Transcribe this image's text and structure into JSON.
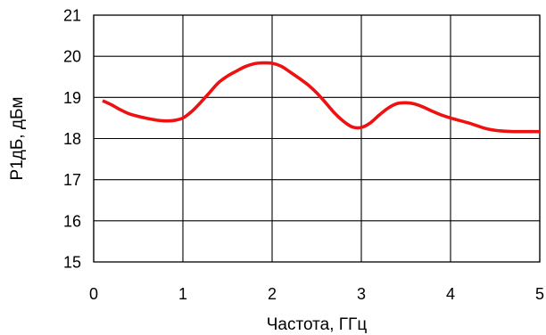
{
  "chart_data": {
    "type": "line",
    "title": "",
    "xlabel": "Частота, ГГц",
    "ylabel": "P1дБ, дБм",
    "xlim": [
      0,
      5
    ],
    "ylim": [
      15,
      21
    ],
    "x_ticks": [
      "0",
      "1",
      "2",
      "3",
      "4",
      "5"
    ],
    "y_ticks": [
      "15",
      "16",
      "17",
      "18",
      "19",
      "20",
      "21"
    ],
    "grid": true,
    "legend": "none",
    "series": [
      {
        "color": "#ee1111",
        "x": [
          0.1,
          0.2,
          0.3,
          0.4,
          0.5,
          0.6,
          0.7,
          0.8,
          0.9,
          1.0,
          1.1,
          1.2,
          1.3,
          1.4,
          1.5,
          1.6,
          1.7,
          1.8,
          1.9,
          2.0,
          2.1,
          2.2,
          2.3,
          2.4,
          2.5,
          2.6,
          2.7,
          2.8,
          2.9,
          3.0,
          3.1,
          3.2,
          3.3,
          3.4,
          3.5,
          3.6,
          3.7,
          3.8,
          3.9,
          4.0,
          4.1,
          4.2,
          4.3,
          4.4,
          4.5,
          4.6,
          4.7,
          4.8,
          4.9,
          5.0
        ],
        "y": [
          18.92,
          18.82,
          18.7,
          18.6,
          18.54,
          18.49,
          18.45,
          18.43,
          18.44,
          18.5,
          18.66,
          18.88,
          19.12,
          19.36,
          19.52,
          19.64,
          19.75,
          19.82,
          19.84,
          19.83,
          19.76,
          19.62,
          19.47,
          19.31,
          19.11,
          18.87,
          18.62,
          18.42,
          18.28,
          18.27,
          18.38,
          18.57,
          18.74,
          18.85,
          18.87,
          18.84,
          18.76,
          18.66,
          18.57,
          18.5,
          18.44,
          18.38,
          18.31,
          18.24,
          18.2,
          18.18,
          18.17,
          18.17,
          18.17,
          18.17
        ]
      }
    ]
  }
}
